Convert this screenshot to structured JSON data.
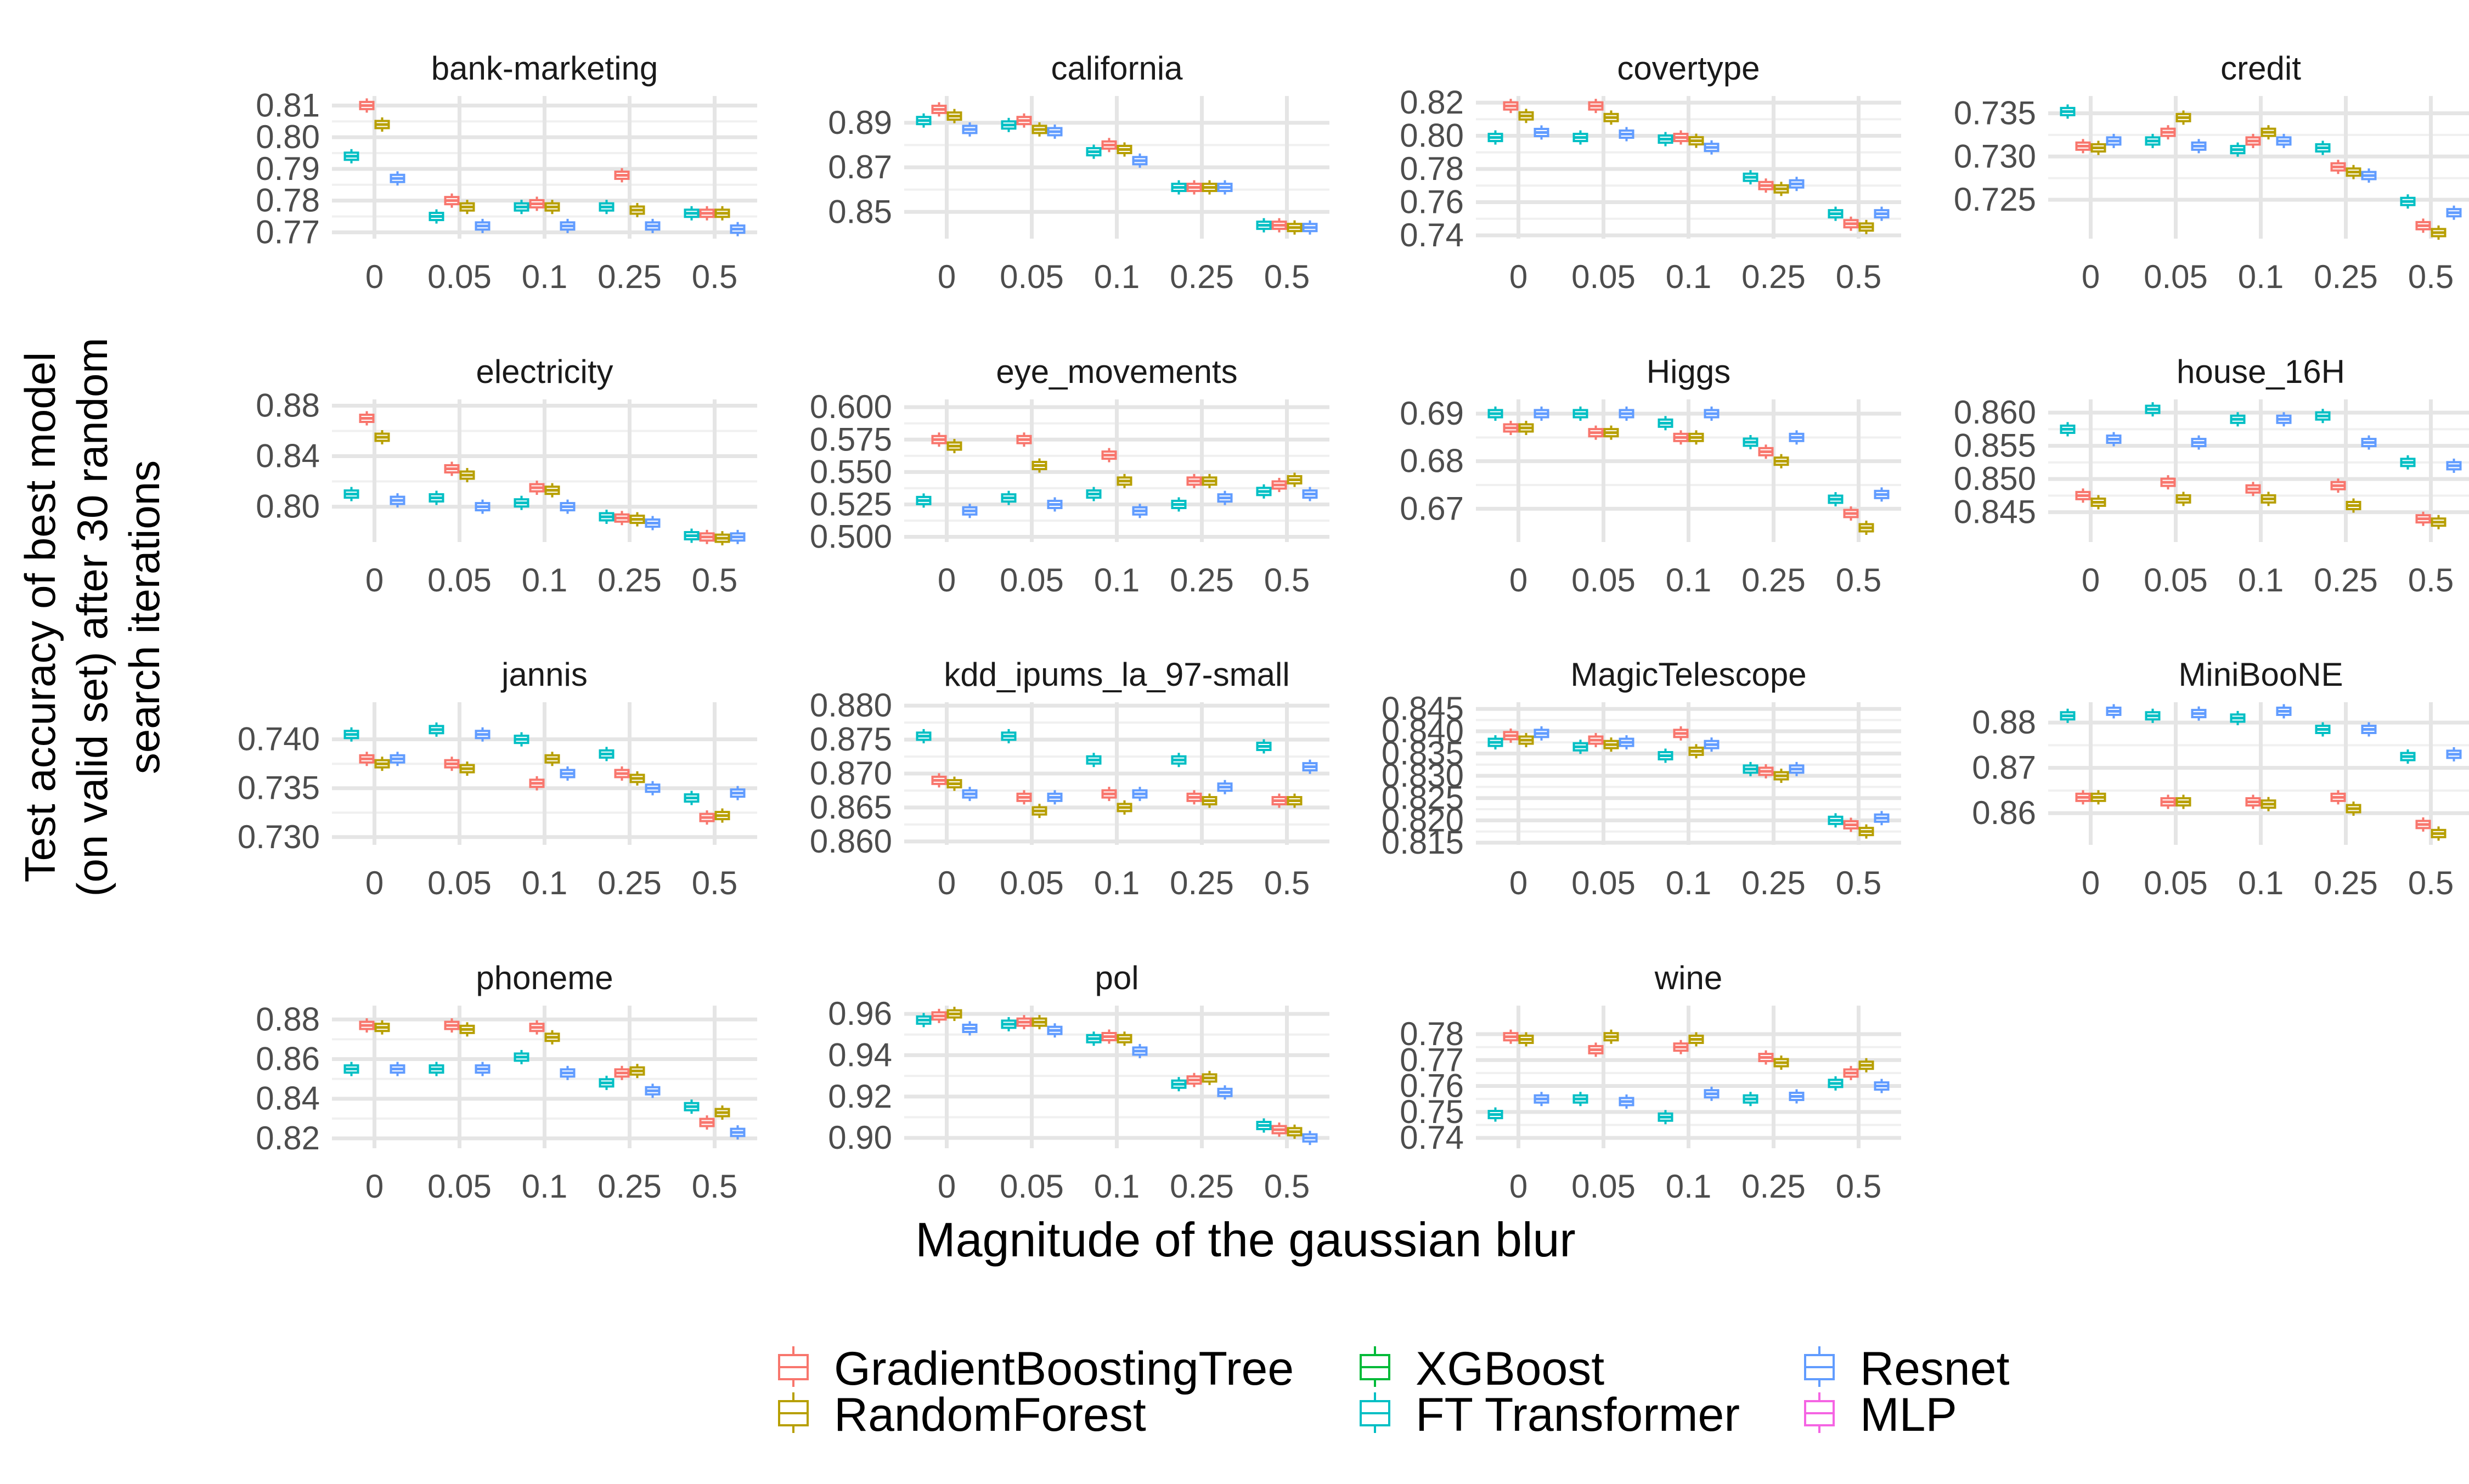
{
  "figure": {
    "ylabel_lines": [
      "Test accuracy of best model",
      "(on valid set) after 30 random",
      "search iterations"
    ],
    "xlabel": "Magnitude of the gaussian blur"
  },
  "legend": {
    "entries": [
      {
        "key": "GBT",
        "label": "GradientBoostingTree",
        "color": "#F8766D"
      },
      {
        "key": "RF",
        "label": "RandomForest",
        "color": "#B79F00"
      },
      {
        "key": "XGB",
        "label": "XGBoost",
        "color": "#00BA38"
      },
      {
        "key": "FTT",
        "label": "FT Transformer",
        "color": "#00BFC4"
      },
      {
        "key": "RES",
        "label": "Resnet",
        "color": "#619CFF"
      },
      {
        "key": "MLP",
        "label": "MLP",
        "color": "#F564E3"
      }
    ]
  },
  "chart_data": {
    "type": "box",
    "x_categories": [
      "0",
      "0.05",
      "0.1",
      "0.25",
      "0.5"
    ],
    "series_order": [
      "FTT",
      "GBT",
      "RF",
      "RES"
    ],
    "grid": true,
    "panels": [
      {
        "title": "bank-marketing",
        "ylim": [
          0.768,
          0.813
        ],
        "ticks": [
          "0.77",
          "0.78",
          "0.79",
          "0.80",
          "0.81"
        ],
        "tickvals": [
          0.77,
          0.78,
          0.79,
          0.8,
          0.81
        ],
        "medians": {
          "FTT": [
            0.794,
            0.775,
            0.778,
            0.778,
            0.776
          ],
          "GBT": [
            0.81,
            0.78,
            0.779,
            0.788,
            0.776
          ],
          "RF": [
            0.804,
            0.778,
            0.778,
            0.777,
            0.776
          ],
          "RES": [
            0.787,
            0.772,
            0.772,
            0.772,
            0.771
          ]
        }
      },
      {
        "title": "california",
        "ylim": [
          0.838,
          0.902
        ],
        "ticks": [
          "0.85",
          "0.87",
          "0.89"
        ],
        "tickvals": [
          0.85,
          0.87,
          0.89
        ],
        "medians": {
          "FTT": [
            0.891,
            0.889,
            0.877,
            0.861,
            0.844
          ],
          "GBT": [
            0.896,
            0.891,
            0.88,
            0.861,
            0.844
          ],
          "RF": [
            0.893,
            0.887,
            0.878,
            0.861,
            0.843
          ],
          "RES": [
            0.887,
            0.886,
            0.873,
            0.861,
            0.843
          ]
        }
      },
      {
        "title": "covertype",
        "ylim": [
          0.738,
          0.824
        ],
        "ticks": [
          "0.74",
          "0.76",
          "0.78",
          "0.80",
          "0.82"
        ],
        "tickvals": [
          0.74,
          0.76,
          0.78,
          0.8,
          0.82
        ],
        "medians": {
          "FTT": [
            0.799,
            0.799,
            0.798,
            0.775,
            0.753
          ],
          "GBT": [
            0.818,
            0.818,
            0.799,
            0.77,
            0.747
          ],
          "RF": [
            0.812,
            0.811,
            0.797,
            0.768,
            0.745
          ],
          "RES": [
            0.802,
            0.801,
            0.793,
            0.771,
            0.753
          ]
        }
      },
      {
        "title": "credit",
        "ylim": [
          0.7205,
          0.737
        ],
        "ticks": [
          "0.725",
          "0.730",
          "0.735"
        ],
        "tickvals": [
          0.725,
          0.73,
          0.735
        ],
        "medians": {
          "FTT": [
            0.7352,
            0.7318,
            0.7308,
            0.731,
            0.7248
          ],
          "GBT": [
            0.7312,
            0.7328,
            0.7318,
            0.7288,
            0.722
          ],
          "RF": [
            0.731,
            0.7345,
            0.7328,
            0.7282,
            0.7212
          ],
          "RES": [
            0.7318,
            0.7312,
            0.7318,
            0.7278,
            0.7235
          ]
        }
      },
      {
        "title": "electricity",
        "ylim": [
          0.772,
          0.885
        ],
        "ticks": [
          "0.80",
          "0.84",
          "0.88"
        ],
        "tickvals": [
          0.8,
          0.84,
          0.88
        ],
        "medians": {
          "FTT": [
            0.81,
            0.807,
            0.803,
            0.792,
            0.777
          ],
          "GBT": [
            0.87,
            0.83,
            0.815,
            0.791,
            0.776
          ],
          "RF": [
            0.855,
            0.825,
            0.813,
            0.79,
            0.775
          ],
          "RES": [
            0.805,
            0.8,
            0.8,
            0.787,
            0.776
          ]
        }
      },
      {
        "title": "eye_movements",
        "ylim": [
          0.496,
          0.606
        ],
        "ticks": [
          "0.500",
          "0.525",
          "0.550",
          "0.575",
          "0.600"
        ],
        "tickvals": [
          0.5,
          0.525,
          0.55,
          0.575,
          0.6
        ],
        "medians": {
          "FTT": [
            0.528,
            0.53,
            0.533,
            0.525,
            0.535
          ],
          "GBT": [
            0.575,
            0.575,
            0.563,
            0.543,
            0.54
          ],
          "RF": [
            0.57,
            0.555,
            0.543,
            0.543,
            0.544
          ],
          "RES": [
            0.52,
            0.525,
            0.52,
            0.53,
            0.533
          ]
        }
      },
      {
        "title": "Higgs",
        "ylim": [
          0.663,
          0.693
        ],
        "ticks": [
          "0.67",
          "0.68",
          "0.69"
        ],
        "tickvals": [
          0.67,
          0.68,
          0.69
        ],
        "medians": {
          "FTT": [
            0.69,
            0.69,
            0.688,
            0.684,
            0.672
          ],
          "GBT": [
            0.687,
            0.686,
            0.685,
            0.682,
            0.669
          ],
          "RF": [
            0.687,
            0.686,
            0.685,
            0.68,
            0.666
          ],
          "RES": [
            0.69,
            0.69,
            0.69,
            0.685,
            0.673
          ]
        }
      },
      {
        "title": "house_16H",
        "ylim": [
          0.8405,
          0.862
        ],
        "ticks": [
          "0.845",
          "0.850",
          "0.855",
          "0.860"
        ],
        "tickvals": [
          0.845,
          0.85,
          0.855,
          0.86
        ],
        "medians": {
          "FTT": [
            0.8575,
            0.8605,
            0.859,
            0.8595,
            0.8525
          ],
          "GBT": [
            0.8475,
            0.8495,
            0.8485,
            0.849,
            0.844
          ],
          "RF": [
            0.8465,
            0.847,
            0.847,
            0.846,
            0.8435
          ],
          "RES": [
            0.856,
            0.8555,
            0.859,
            0.8555,
            0.852
          ]
        }
      },
      {
        "title": "jannis",
        "ylim": [
          0.7292,
          0.7438
        ],
        "ticks": [
          "0.730",
          "0.735",
          "0.740"
        ],
        "tickvals": [
          0.73,
          0.735,
          0.74
        ],
        "medians": {
          "FTT": [
            0.7405,
            0.741,
            0.74,
            0.7385,
            0.734
          ],
          "GBT": [
            0.738,
            0.7375,
            0.7355,
            0.7365,
            0.732
          ],
          "RF": [
            0.7375,
            0.737,
            0.738,
            0.736,
            0.7322
          ],
          "RES": [
            0.738,
            0.7405,
            0.7365,
            0.735,
            0.7345
          ]
        }
      },
      {
        "title": "kdd_ipums_la_97-small",
        "ylim": [
          0.8595,
          0.8805
        ],
        "ticks": [
          "0.860",
          "0.865",
          "0.870",
          "0.875",
          "0.880"
        ],
        "tickvals": [
          0.86,
          0.865,
          0.87,
          0.875,
          0.88
        ],
        "medians": {
          "FTT": [
            0.8755,
            0.8755,
            0.872,
            0.872,
            0.874
          ],
          "GBT": [
            0.869,
            0.8665,
            0.867,
            0.8665,
            0.866
          ],
          "RF": [
            0.8685,
            0.8645,
            0.865,
            0.866,
            0.866
          ],
          "RES": [
            0.867,
            0.8665,
            0.867,
            0.868,
            0.871
          ]
        }
      },
      {
        "title": "MagicTelescope",
        "ylim": [
          0.8145,
          0.8465
        ],
        "ticks": [
          "0.815",
          "0.820",
          "0.825",
          "0.830",
          "0.835",
          "0.840",
          "0.845"
        ],
        "tickvals": [
          0.815,
          0.82,
          0.825,
          0.83,
          0.835,
          0.84,
          0.845
        ],
        "medians": {
          "FTT": [
            0.8375,
            0.8365,
            0.8345,
            0.8315,
            0.82
          ],
          "GBT": [
            0.839,
            0.838,
            0.8395,
            0.831,
            0.819
          ],
          "RF": [
            0.838,
            0.837,
            0.8355,
            0.83,
            0.8175
          ],
          "RES": [
            0.8395,
            0.8375,
            0.837,
            0.8315,
            0.8205
          ]
        }
      },
      {
        "title": "MiniBooNE",
        "ylim": [
          0.853,
          0.8845
        ],
        "ticks": [
          "0.86",
          "0.87",
          "0.88"
        ],
        "tickvals": [
          0.86,
          0.87,
          0.88
        ],
        "medians": {
          "FTT": [
            0.8815,
            0.8815,
            0.881,
            0.8785,
            0.8725
          ],
          "GBT": [
            0.8635,
            0.8625,
            0.8625,
            0.8635,
            0.8575
          ],
          "RF": [
            0.8635,
            0.8625,
            0.862,
            0.861,
            0.8555
          ],
          "RES": [
            0.8825,
            0.882,
            0.8825,
            0.8785,
            0.873
          ]
        }
      },
      {
        "title": "phoneme",
        "ylim": [
          0.815,
          0.887
        ],
        "ticks": [
          "0.82",
          "0.84",
          "0.86",
          "0.88"
        ],
        "tickvals": [
          0.82,
          0.84,
          0.86,
          0.88
        ],
        "medians": {
          "FTT": [
            0.855,
            0.855,
            0.861,
            0.848,
            0.836
          ],
          "GBT": [
            0.877,
            0.877,
            0.876,
            0.853,
            0.828
          ],
          "RF": [
            0.876,
            0.875,
            0.871,
            0.854,
            0.833
          ],
          "RES": [
            0.855,
            0.855,
            0.853,
            0.844,
            0.823
          ]
        }
      },
      {
        "title": "pol",
        "ylim": [
          0.895,
          0.964
        ],
        "ticks": [
          "0.90",
          "0.92",
          "0.94",
          "0.96"
        ],
        "tickvals": [
          0.9,
          0.92,
          0.94,
          0.96
        ],
        "medians": {
          "FTT": [
            0.957,
            0.955,
            0.948,
            0.926,
            0.906
          ],
          "GBT": [
            0.959,
            0.956,
            0.949,
            0.928,
            0.904
          ],
          "RF": [
            0.96,
            0.956,
            0.948,
            0.929,
            0.903
          ],
          "RES": [
            0.953,
            0.952,
            0.942,
            0.922,
            0.9
          ]
        }
      },
      {
        "title": "wine",
        "ylim": [
          0.736,
          0.791
        ],
        "ticks": [
          "0.74",
          "0.75",
          "0.76",
          "0.77",
          "0.78"
        ],
        "tickvals": [
          0.74,
          0.75,
          0.76,
          0.77,
          0.78
        ],
        "medians": {
          "FTT": [
            0.749,
            0.755,
            0.748,
            0.755,
            0.761
          ],
          "GBT": [
            0.779,
            0.774,
            0.775,
            0.771,
            0.765
          ],
          "RF": [
            0.778,
            0.779,
            0.778,
            0.769,
            0.768
          ],
          "RES": [
            0.755,
            0.754,
            0.757,
            0.756,
            0.76
          ]
        }
      }
    ]
  }
}
